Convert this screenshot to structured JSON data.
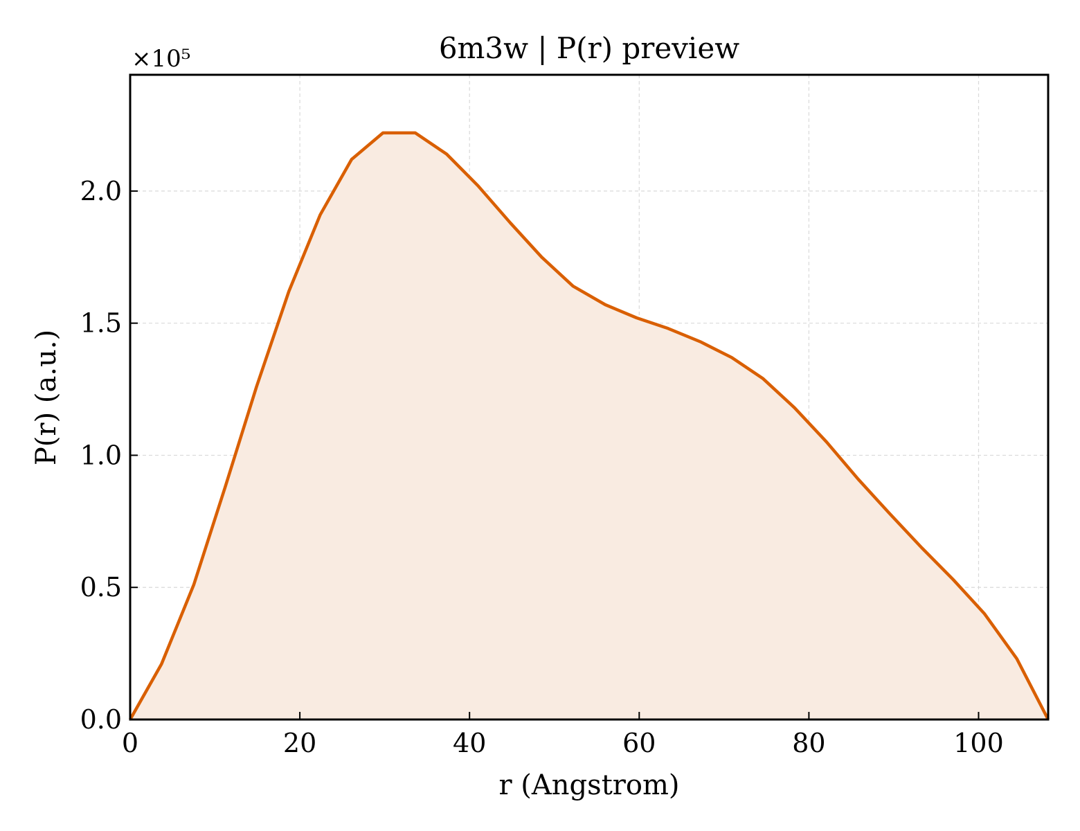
{
  "chart_data": {
    "type": "area",
    "title": "6m3w | P(r) preview",
    "xlabel": "r (Angstrom)",
    "ylabel": "P(r) (a.u.)",
    "offset_label": "×10⁵",
    "xlim": [
      0,
      108.2
    ],
    "ylim": [
      0,
      2.44
    ],
    "y_scale_factor": 100000,
    "xticks": [
      0,
      20,
      40,
      60,
      80,
      100
    ],
    "xtick_labels": [
      "0",
      "20",
      "40",
      "60",
      "80",
      "100"
    ],
    "yticks": [
      0.0,
      0.5,
      1.0,
      1.5,
      2.0
    ],
    "ytick_labels": [
      "0.0",
      "0.5",
      "1.0",
      "1.5",
      "2.0"
    ],
    "grid": true,
    "colors": {
      "line": "#d95f02",
      "fill": "#f9ebe1"
    },
    "series": [
      {
        "x": [
          0,
          3.7,
          7.5,
          11.2,
          14.9,
          18.7,
          22.4,
          26.1,
          29.8,
          33.6,
          37.3,
          41.0,
          44.8,
          48.5,
          52.2,
          56.0,
          59.7,
          63.4,
          67.2,
          70.9,
          74.6,
          78.3,
          82.1,
          85.8,
          89.5,
          93.3,
          97.0,
          100.7,
          104.5,
          108.2
        ],
        "y": [
          0.0,
          0.21,
          0.51,
          0.88,
          1.26,
          1.62,
          1.91,
          2.12,
          2.22,
          2.22,
          2.14,
          2.02,
          1.88,
          1.75,
          1.64,
          1.57,
          1.52,
          1.48,
          1.43,
          1.37,
          1.29,
          1.18,
          1.05,
          0.91,
          0.78,
          0.65,
          0.53,
          0.4,
          0.23,
          0.0
        ]
      }
    ]
  }
}
